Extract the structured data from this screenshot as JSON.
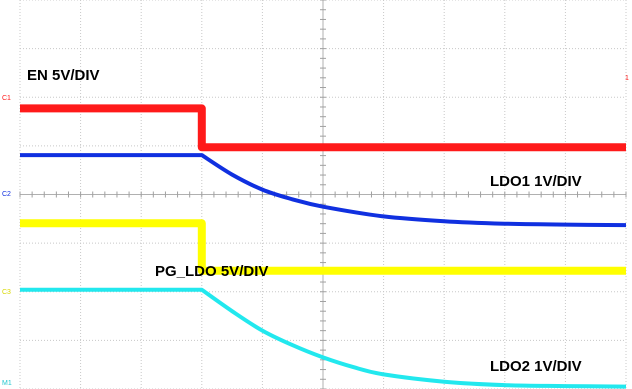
{
  "chart_data": {
    "type": "line",
    "title": "",
    "xlabel": "",
    "ylabel": "",
    "grid": true,
    "grid_divisions": {
      "horizontal": 10,
      "vertical": 8
    },
    "x_range_div": [
      0,
      10
    ],
    "series": [
      {
        "id": "ch1",
        "name": "EN 5V/DIV",
        "marker_label": "C1",
        "color": "#ff1a1a",
        "volts_per_div": 5,
        "ground_div": 2.88,
        "x_div": [
          0,
          3.0,
          3.0,
          10
        ],
        "y_div": [
          5.77,
          5.77,
          4.97,
          4.97
        ]
      },
      {
        "id": "ch2",
        "name": "LDO1 1V/DIV",
        "marker_label": "C2",
        "color": "#1030e0",
        "volts_per_div": 1,
        "ground_div": 3.35,
        "x_div": [
          0,
          3.0,
          3.5,
          4.0,
          4.5,
          5.0,
          6.0,
          7.0,
          8.0,
          9.0,
          10.0
        ],
        "y_div": [
          4.81,
          4.81,
          4.41,
          4.1,
          3.9,
          3.75,
          3.55,
          3.45,
          3.4,
          3.38,
          3.37
        ]
      },
      {
        "id": "ch3",
        "name": "PG_LDO 5V/DIV",
        "marker_label": "C3",
        "color": "#ffff00",
        "volts_per_div": 5,
        "ground_div": 2.42,
        "x_div": [
          0,
          3.0,
          3.0,
          10
        ],
        "y_div": [
          3.41,
          3.41,
          2.43,
          2.43
        ]
      },
      {
        "id": "m1",
        "name": "LDO2 1V/DIV",
        "marker_label": "M1",
        "color": "#22e8ee",
        "volts_per_div": 1,
        "ground_div": 0.04,
        "x_div": [
          0,
          3.0,
          3.5,
          4.0,
          4.5,
          5.0,
          5.5,
          6.0,
          7.0,
          8.0,
          9.0,
          10.0
        ],
        "y_div": [
          2.04,
          2.04,
          1.6,
          1.2,
          0.9,
          0.65,
          0.45,
          0.3,
          0.15,
          0.08,
          0.06,
          0.05
        ]
      }
    ],
    "labels": {
      "en": "EN 5V/DIV",
      "ldo1": "LDO1 1V/DIV",
      "pg": "PG_LDO 5V/DIV",
      "ldo2": "LDO2 1V/DIV"
    }
  },
  "markers": {
    "ch1": "C1",
    "ch2": "C2",
    "ch3": "C3",
    "m1": "M1",
    "trigger": "1"
  }
}
